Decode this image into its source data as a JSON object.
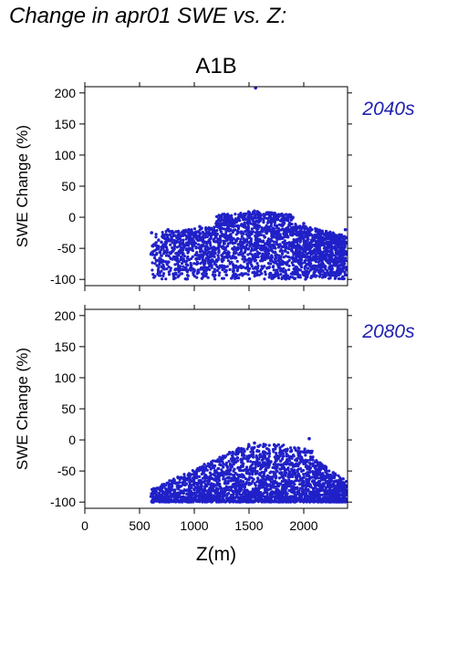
{
  "title": "Change in apr01 SWE vs. Z:",
  "scenario": "A1B",
  "colors": {
    "points": "#2020c8",
    "period_label": "#2020b0",
    "axes": "#000000"
  },
  "chart_data": [
    {
      "type": "scatter",
      "period": "2040s",
      "xlabel": "",
      "ylabel": "SWE Change (%)",
      "xlim": [
        0,
        2400
      ],
      "ylim": [
        -110,
        210
      ],
      "yticks": [
        -100,
        -50,
        0,
        50,
        100,
        150,
        200
      ],
      "xticks": [
        0,
        500,
        1000,
        1500,
        2000
      ],
      "grid": false,
      "points": [
        [
          610,
          -25
        ],
        [
          620,
          -60
        ],
        [
          640,
          -95
        ],
        [
          700,
          -40
        ],
        [
          720,
          -80
        ],
        [
          760,
          -20
        ],
        [
          800,
          -55
        ],
        [
          830,
          -90
        ],
        [
          880,
          -30
        ],
        [
          900,
          -70
        ],
        [
          950,
          -20
        ],
        [
          980,
          -50
        ],
        [
          1000,
          -85
        ],
        [
          1050,
          -15
        ],
        [
          1100,
          -40
        ],
        [
          1150,
          -75
        ],
        [
          1200,
          -10
        ],
        [
          1250,
          -30
        ],
        [
          1300,
          -60
        ],
        [
          1350,
          -5
        ],
        [
          1400,
          -25
        ],
        [
          1450,
          0
        ],
        [
          1500,
          5
        ],
        [
          1550,
          10
        ],
        [
          1600,
          0
        ],
        [
          1650,
          -20
        ],
        [
          1700,
          -5
        ],
        [
          1750,
          -40
        ],
        [
          1800,
          5
        ],
        [
          1850,
          -30
        ],
        [
          1900,
          0
        ],
        [
          1950,
          -60
        ],
        [
          2000,
          -10
        ],
        [
          2050,
          -45
        ],
        [
          2100,
          -80
        ],
        [
          2150,
          -35
        ],
        [
          2200,
          -65
        ],
        [
          2250,
          -90
        ],
        [
          2300,
          -50
        ],
        [
          2360,
          -75
        ],
        [
          2380,
          -20
        ],
        [
          1560,
          208
        ]
      ]
    },
    {
      "type": "scatter",
      "period": "2080s",
      "xlabel": "Z(m)",
      "ylabel": "SWE Change (%)",
      "xlim": [
        0,
        2400
      ],
      "ylim": [
        -110,
        210
      ],
      "yticks": [
        -100,
        -50,
        0,
        50,
        100,
        150,
        200
      ],
      "xticks": [
        0,
        500,
        1000,
        1500,
        2000
      ],
      "grid": false,
      "points": [
        [
          620,
          -100
        ],
        [
          650,
          -80
        ],
        [
          700,
          -95
        ],
        [
          760,
          -70
        ],
        [
          800,
          -90
        ],
        [
          850,
          -60
        ],
        [
          900,
          -85
        ],
        [
          950,
          -55
        ],
        [
          1000,
          -80
        ],
        [
          1050,
          -45
        ],
        [
          1100,
          -75
        ],
        [
          1150,
          -40
        ],
        [
          1200,
          -65
        ],
        [
          1250,
          -30
        ],
        [
          1300,
          -55
        ],
        [
          1350,
          -20
        ],
        [
          1400,
          -45
        ],
        [
          1450,
          -15
        ],
        [
          1500,
          -10
        ],
        [
          1550,
          -5
        ],
        [
          1600,
          -25
        ],
        [
          1650,
          -8
        ],
        [
          1700,
          -35
        ],
        [
          1750,
          -10
        ],
        [
          1800,
          -40
        ],
        [
          1850,
          -15
        ],
        [
          1900,
          -50
        ],
        [
          1950,
          -20
        ],
        [
          2000,
          -60
        ],
        [
          2050,
          2
        ],
        [
          2100,
          -70
        ],
        [
          2150,
          -55
        ],
        [
          2200,
          -85
        ],
        [
          2250,
          -95
        ],
        [
          2300,
          -80
        ],
        [
          2360,
          -90
        ],
        [
          2380,
          -75
        ]
      ]
    }
  ]
}
